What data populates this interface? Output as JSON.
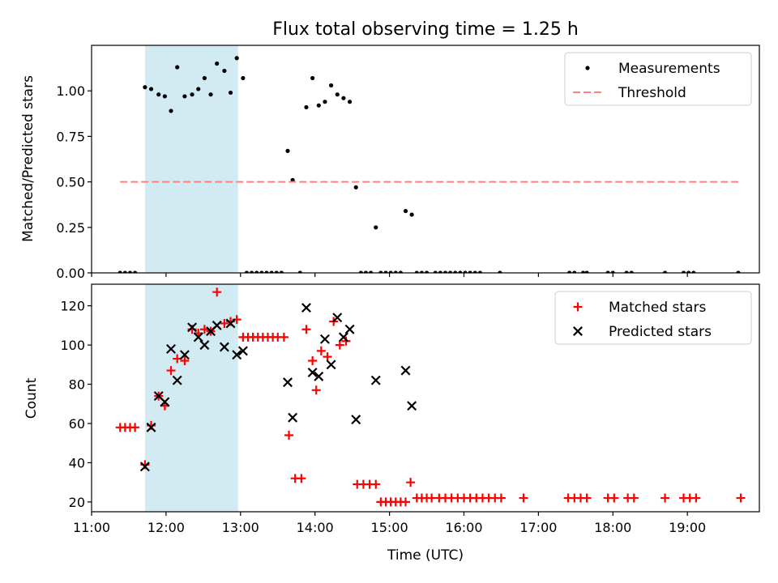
{
  "figure": {
    "title": "Flux total observing time = 1.25 h"
  },
  "colors": {
    "shade": "#add8e6",
    "threshold": "#ff7f7f",
    "matched": "#ff0000",
    "predicted": "#000000",
    "measurement": "#000000"
  },
  "chart_data": [
    {
      "type": "scatter",
      "title": "Flux total observing time = 1.25 h",
      "xlabel": "",
      "ylabel": "Matched/Predicted stars",
      "xlim": [
        "11:00",
        "19:58"
      ],
      "ylim": [
        0.0,
        1.25
      ],
      "yticks": [
        0.0,
        0.25,
        0.5,
        0.75,
        1.0
      ],
      "ytick_labels": [
        "0.00",
        "0.25",
        "0.50",
        "0.75",
        "1.00"
      ],
      "shaded_interval": [
        "11:43",
        "12:58"
      ],
      "legend_placement": "upper right",
      "legend": [
        "Measurements",
        "Threshold"
      ],
      "series": [
        {
          "name": "Measurements",
          "marker": "dot",
          "points": [
            [
              "11:23",
              0
            ],
            [
              "11:27",
              0
            ],
            [
              "11:31",
              0
            ],
            [
              "11:35",
              0
            ],
            [
              "11:43",
              1.02
            ],
            [
              "11:48",
              1.01
            ],
            [
              "11:54",
              0.98
            ],
            [
              "11:59",
              0.97
            ],
            [
              "12:04",
              0.89
            ],
            [
              "12:09",
              1.13
            ],
            [
              "12:15",
              0.97
            ],
            [
              "12:21",
              0.98
            ],
            [
              "12:26",
              1.01
            ],
            [
              "12:31",
              1.07
            ],
            [
              "12:36",
              0.98
            ],
            [
              "12:41",
              1.15
            ],
            [
              "12:47",
              1.11
            ],
            [
              "12:52",
              0.99
            ],
            [
              "12:57",
              1.18
            ],
            [
              "13:02",
              1.07
            ],
            [
              "13:05",
              0
            ],
            [
              "13:09",
              0
            ],
            [
              "13:13",
              0
            ],
            [
              "13:17",
              0
            ],
            [
              "13:21",
              0
            ],
            [
              "13:25",
              0
            ],
            [
              "13:29",
              0
            ],
            [
              "13:33",
              0
            ],
            [
              "13:38",
              0.67
            ],
            [
              "13:42",
              0.51
            ],
            [
              "13:48",
              0
            ],
            [
              "13:53",
              0.91
            ],
            [
              "13:58",
              1.07
            ],
            [
              "14:03",
              0.92
            ],
            [
              "14:08",
              0.94
            ],
            [
              "14:13",
              1.03
            ],
            [
              "14:18",
              0.98
            ],
            [
              "14:23",
              0.96
            ],
            [
              "14:28",
              0.94
            ],
            [
              "14:33",
              0.47
            ],
            [
              "14:37",
              0
            ],
            [
              "14:41",
              0
            ],
            [
              "14:45",
              0
            ],
            [
              "14:49",
              0.25
            ],
            [
              "14:53",
              0
            ],
            [
              "14:57",
              0
            ],
            [
              "15:01",
              0
            ],
            [
              "15:05",
              0
            ],
            [
              "15:09",
              0
            ],
            [
              "15:13",
              0.34
            ],
            [
              "15:18",
              0.32
            ],
            [
              "15:22",
              0
            ],
            [
              "15:26",
              0
            ],
            [
              "15:30",
              0
            ],
            [
              "15:37",
              0
            ],
            [
              "15:41",
              0
            ],
            [
              "15:45",
              0
            ],
            [
              "15:49",
              0
            ],
            [
              "15:53",
              0
            ],
            [
              "15:57",
              0
            ],
            [
              "16:01",
              0
            ],
            [
              "16:05",
              0
            ],
            [
              "16:09",
              0
            ],
            [
              "16:13",
              0
            ],
            [
              "16:29",
              0
            ],
            [
              "17:25",
              0
            ],
            [
              "17:29",
              0
            ],
            [
              "17:36",
              0
            ],
            [
              "17:39",
              0
            ],
            [
              "17:56",
              0
            ],
            [
              "18:00",
              0
            ],
            [
              "18:11",
              0
            ],
            [
              "18:15",
              0
            ],
            [
              "18:42",
              0
            ],
            [
              "18:57",
              0
            ],
            [
              "19:01",
              0
            ],
            [
              "19:05",
              0
            ],
            [
              "19:41",
              0
            ]
          ]
        },
        {
          "name": "Threshold",
          "style": "dashed",
          "x": [
            "11:23",
            "19:41"
          ],
          "y": [
            0.5,
            0.5
          ]
        }
      ]
    },
    {
      "type": "scatter",
      "xlabel": "Time (UTC)",
      "ylabel": "Count",
      "xlim": [
        "11:00",
        "19:58"
      ],
      "ylim": [
        15,
        131
      ],
      "yticks": [
        20,
        40,
        60,
        80,
        100,
        120
      ],
      "xticks": [
        "11:00",
        "12:00",
        "13:00",
        "14:00",
        "15:00",
        "16:00",
        "17:00",
        "18:00",
        "19:00"
      ],
      "shaded_interval": [
        "11:43",
        "12:58"
      ],
      "legend_placement": "upper right",
      "legend": [
        "Matched stars",
        "Predicted stars"
      ],
      "series": [
        {
          "name": "Matched stars",
          "marker": "plus",
          "points": [
            [
              "11:23",
              58
            ],
            [
              "11:27",
              58
            ],
            [
              "11:31",
              58
            ],
            [
              "11:35",
              58
            ],
            [
              "11:43",
              39
            ],
            [
              "11:48",
              59
            ],
            [
              "11:54",
              74
            ],
            [
              "11:59",
              69
            ],
            [
              "12:04",
              87
            ],
            [
              "12:09",
              93
            ],
            [
              "12:15",
              92
            ],
            [
              "12:21",
              108
            ],
            [
              "12:26",
              106
            ],
            [
              "12:31",
              108
            ],
            [
              "12:36",
              107
            ],
            [
              "12:41",
              127
            ],
            [
              "12:47",
              111
            ],
            [
              "12:52",
              112
            ],
            [
              "12:57",
              113
            ],
            [
              "13:02",
              104
            ],
            [
              "13:06",
              104
            ],
            [
              "13:10",
              104
            ],
            [
              "13:14",
              104
            ],
            [
              "13:18",
              104
            ],
            [
              "13:22",
              104
            ],
            [
              "13:26",
              104
            ],
            [
              "13:30",
              104
            ],
            [
              "13:35",
              104
            ],
            [
              "13:39",
              54
            ],
            [
              "13:44",
              32
            ],
            [
              "13:49",
              32
            ],
            [
              "13:53",
              108
            ],
            [
              "13:58",
              92
            ],
            [
              "14:01",
              77
            ],
            [
              "14:05",
              97
            ],
            [
              "14:10",
              94
            ],
            [
              "14:15",
              112
            ],
            [
              "14:20",
              100
            ],
            [
              "14:25",
              102
            ],
            [
              "14:34",
              29
            ],
            [
              "14:39",
              29
            ],
            [
              "14:44",
              29
            ],
            [
              "14:49",
              29
            ],
            [
              "14:53",
              20
            ],
            [
              "14:57",
              20
            ],
            [
              "15:01",
              20
            ],
            [
              "15:05",
              20
            ],
            [
              "15:09",
              20
            ],
            [
              "15:13",
              20
            ],
            [
              "15:17",
              30
            ],
            [
              "15:22",
              22
            ],
            [
              "15:26",
              22
            ],
            [
              "15:30",
              22
            ],
            [
              "15:34",
              22
            ],
            [
              "15:40",
              22
            ],
            [
              "15:45",
              22
            ],
            [
              "15:50",
              22
            ],
            [
              "15:55",
              22
            ],
            [
              "16:00",
              22
            ],
            [
              "16:05",
              22
            ],
            [
              "16:10",
              22
            ],
            [
              "16:15",
              22
            ],
            [
              "16:20",
              22
            ],
            [
              "16:25",
              22
            ],
            [
              "16:30",
              22
            ],
            [
              "16:48",
              22
            ],
            [
              "17:24",
              22
            ],
            [
              "17:29",
              22
            ],
            [
              "17:34",
              22
            ],
            [
              "17:39",
              22
            ],
            [
              "17:56",
              22
            ],
            [
              "18:01",
              22
            ],
            [
              "18:12",
              22
            ],
            [
              "18:17",
              22
            ],
            [
              "18:42",
              22
            ],
            [
              "18:57",
              22
            ],
            [
              "19:02",
              22
            ],
            [
              "19:07",
              22
            ],
            [
              "19:43",
              22
            ]
          ]
        },
        {
          "name": "Predicted stars",
          "marker": "x",
          "points": [
            [
              "11:43",
              38
            ],
            [
              "11:48",
              58
            ],
            [
              "11:54",
              74
            ],
            [
              "11:59",
              71
            ],
            [
              "12:04",
              98
            ],
            [
              "12:09",
              82
            ],
            [
              "12:15",
              95
            ],
            [
              "12:21",
              109
            ],
            [
              "12:26",
              104
            ],
            [
              "12:31",
              100
            ],
            [
              "12:36",
              107
            ],
            [
              "12:41",
              110
            ],
            [
              "12:47",
              99
            ],
            [
              "12:52",
              111
            ],
            [
              "12:57",
              95
            ],
            [
              "13:02",
              97
            ],
            [
              "13:38",
              81
            ],
            [
              "13:42",
              63
            ],
            [
              "13:53",
              119
            ],
            [
              "13:58",
              86
            ],
            [
              "14:03",
              84
            ],
            [
              "14:08",
              103
            ],
            [
              "14:13",
              90
            ],
            [
              "14:18",
              114
            ],
            [
              "14:23",
              104
            ],
            [
              "14:28",
              108
            ],
            [
              "14:33",
              62
            ],
            [
              "14:49",
              82
            ],
            [
              "15:13",
              87
            ],
            [
              "15:18",
              69
            ]
          ]
        }
      ]
    }
  ]
}
